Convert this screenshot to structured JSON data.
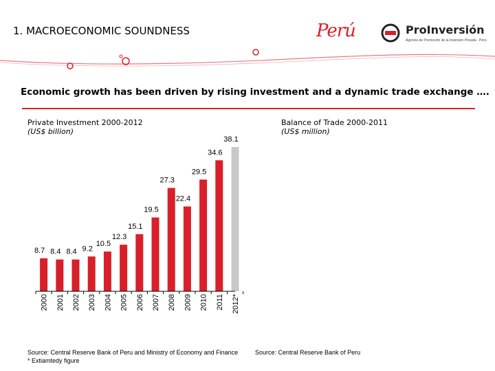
{
  "header": {
    "title": "1. MACROECONOMIC SOUNDNESS",
    "logo_left": "Perú",
    "logo_right": "ProInversión",
    "logo_right_tagline": "Agencia de Promoción de la Inversión Privada - Perú"
  },
  "subtitle": "Economic growth has been driven by rising investment and a dynamic trade exchange ….",
  "colors": {
    "accent": "#d8202a",
    "estimate": "#c8c8c8",
    "rule": "#d8202a"
  },
  "left_panel": {
    "title": "Private Investment 2000-2012",
    "unit": "(US$ billion)",
    "source": "Source: Central Reserve Bank of Peru and Ministry of Economy and Finance",
    "footnote": "* Extiamtedy figure"
  },
  "right_panel": {
    "title": "Balance of Trade 2000-2011",
    "unit": "(US$ million)",
    "source": "Source: Central Reserve Bank of Peru"
  },
  "chart_data": {
    "type": "bar",
    "categories": [
      "2000",
      "2001",
      "2002",
      "2003",
      "2004",
      "2005",
      "2006",
      "2007",
      "2008",
      "2009",
      "2010",
      "2011",
      "2012*"
    ],
    "values": [
      8.7,
      8.4,
      8.4,
      9.2,
      10.5,
      12.3,
      15.1,
      19.5,
      27.3,
      22.4,
      29.5,
      34.6,
      38.1
    ],
    "value_labels": [
      "8.7",
      "8.4",
      "8.4",
      "9.2",
      "10.5",
      "12.3",
      "15.1",
      "19.5",
      "27.3",
      "22.4",
      "29.5",
      "34.6",
      "38.1"
    ],
    "estimate_index": 12,
    "title": "Private Investment 2000-2012",
    "ylabel": "(US$ billion)",
    "ylim": [
      0,
      38.1
    ],
    "grid": false,
    "legend": "none"
  }
}
